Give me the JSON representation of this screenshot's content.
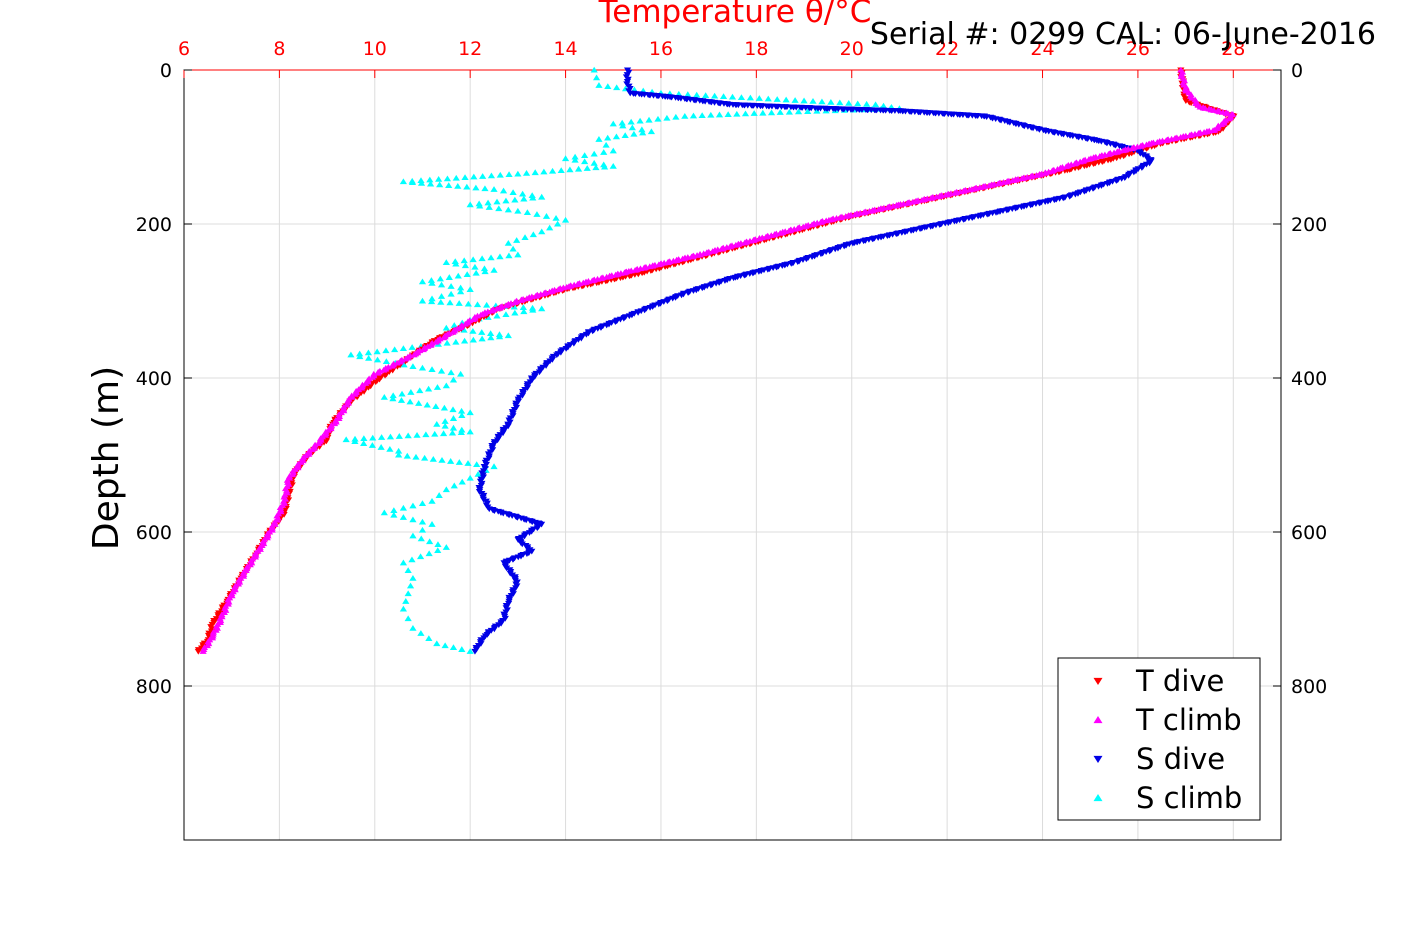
{
  "header": {
    "serial_text": "Serial #: 0299 CAL: 06-June-2016"
  },
  "colors": {
    "axis_top": "#ff0000",
    "t_dive": "#ff0000",
    "t_climb": "#ff00ff",
    "s_dive": "#0000e6",
    "s_climb": "#00ffff",
    "grid": "#dcdcdc"
  },
  "chart_data": {
    "type": "scatter",
    "title": "Temperature θ/°C",
    "xlabel": "Temperature θ/°C",
    "ylabel": "Depth (m)",
    "xlim": [
      6,
      29
    ],
    "ylim": [
      1000,
      0
    ],
    "y_reversed": true,
    "xticks": [
      6,
      8,
      10,
      12,
      14,
      16,
      18,
      20,
      22,
      24,
      26,
      28
    ],
    "yticks": [
      0,
      200,
      400,
      600,
      800
    ],
    "grid": true,
    "legend_position": "bottom-right",
    "series": [
      {
        "name": "T dive",
        "marker": "triangle-down",
        "points": [
          [
            26.9,
            0
          ],
          [
            26.95,
            20
          ],
          [
            27.0,
            40
          ],
          [
            27.5,
            50
          ],
          [
            28.0,
            60
          ],
          [
            27.7,
            80
          ],
          [
            26.5,
            95
          ],
          [
            25.5,
            115
          ],
          [
            24.5,
            130
          ],
          [
            23.0,
            150
          ],
          [
            21.5,
            170
          ],
          [
            20.0,
            190
          ],
          [
            18.5,
            215
          ],
          [
            17.0,
            240
          ],
          [
            15.5,
            265
          ],
          [
            14.0,
            285
          ],
          [
            12.6,
            310
          ],
          [
            12.0,
            330
          ],
          [
            11.3,
            350
          ],
          [
            10.7,
            375
          ],
          [
            10.0,
            405
          ],
          [
            9.5,
            430
          ],
          [
            9.1,
            460
          ],
          [
            9.0,
            480
          ],
          [
            8.6,
            500
          ],
          [
            8.3,
            525
          ],
          [
            8.2,
            550
          ],
          [
            8.1,
            575
          ],
          [
            7.8,
            600
          ],
          [
            7.5,
            630
          ],
          [
            7.2,
            660
          ],
          [
            6.9,
            690
          ],
          [
            6.6,
            720
          ],
          [
            6.5,
            740
          ],
          [
            6.3,
            755
          ]
        ]
      },
      {
        "name": "T climb",
        "marker": "triangle-up",
        "points": [
          [
            26.9,
            0
          ],
          [
            27.0,
            25
          ],
          [
            27.3,
            48
          ],
          [
            28.0,
            58
          ],
          [
            27.6,
            78
          ],
          [
            26.3,
            95
          ],
          [
            25.0,
            115
          ],
          [
            24.0,
            135
          ],
          [
            22.5,
            155
          ],
          [
            21.0,
            175
          ],
          [
            19.5,
            195
          ],
          [
            18.0,
            220
          ],
          [
            16.8,
            240
          ],
          [
            15.3,
            262
          ],
          [
            14.0,
            282
          ],
          [
            13.0,
            300
          ],
          [
            12.2,
            318
          ],
          [
            11.5,
            345
          ],
          [
            10.8,
            370
          ],
          [
            10.0,
            395
          ],
          [
            9.5,
            425
          ],
          [
            9.2,
            455
          ],
          [
            8.8,
            485
          ],
          [
            8.5,
            505
          ],
          [
            8.2,
            530
          ],
          [
            8.1,
            560
          ],
          [
            7.9,
            590
          ],
          [
            7.6,
            620
          ],
          [
            7.3,
            650
          ],
          [
            7.0,
            680
          ],
          [
            6.8,
            710
          ],
          [
            6.6,
            735
          ],
          [
            6.4,
            755
          ]
        ]
      },
      {
        "name": "S dive",
        "marker": "triangle-down",
        "points": [
          [
            15.3,
            0
          ],
          [
            15.3,
            15
          ],
          [
            15.35,
            30
          ],
          [
            16.2,
            35
          ],
          [
            17.5,
            45
          ],
          [
            19.5,
            50
          ],
          [
            21.0,
            53
          ],
          [
            22.8,
            60
          ],
          [
            24.0,
            78
          ],
          [
            25.2,
            92
          ],
          [
            26.0,
            105
          ],
          [
            26.3,
            118
          ],
          [
            25.7,
            140
          ],
          [
            24.5,
            165
          ],
          [
            23.0,
            185
          ],
          [
            21.5,
            205
          ],
          [
            20.0,
            225
          ],
          [
            18.8,
            250
          ],
          [
            17.5,
            270
          ],
          [
            16.5,
            290
          ],
          [
            15.5,
            315
          ],
          [
            14.5,
            340
          ],
          [
            13.8,
            370
          ],
          [
            13.3,
            400
          ],
          [
            13.0,
            430
          ],
          [
            12.8,
            460
          ],
          [
            12.5,
            485
          ],
          [
            12.3,
            515
          ],
          [
            12.2,
            545
          ],
          [
            12.4,
            570
          ],
          [
            13.5,
            590
          ],
          [
            13.0,
            610
          ],
          [
            13.3,
            625
          ],
          [
            12.7,
            640
          ],
          [
            13.0,
            665
          ],
          [
            12.8,
            690
          ],
          [
            12.7,
            715
          ],
          [
            12.3,
            735
          ],
          [
            12.1,
            755
          ]
        ]
      },
      {
        "name": "S climb",
        "marker": "triangle-up",
        "points": [
          [
            14.6,
            0
          ],
          [
            14.7,
            20
          ],
          [
            16.0,
            30
          ],
          [
            17.5,
            35
          ],
          [
            19.0,
            40
          ],
          [
            20.5,
            45
          ],
          [
            21.0,
            50
          ],
          [
            18.5,
            55
          ],
          [
            16.5,
            60
          ],
          [
            15.0,
            70
          ],
          [
            15.8,
            80
          ],
          [
            14.7,
            90
          ],
          [
            15.0,
            105
          ],
          [
            14.0,
            115
          ],
          [
            15.0,
            125
          ],
          [
            13.0,
            135
          ],
          [
            10.6,
            145
          ],
          [
            12.5,
            155
          ],
          [
            13.5,
            165
          ],
          [
            12.0,
            175
          ],
          [
            13.2,
            185
          ],
          [
            14.0,
            195
          ],
          [
            13.5,
            210
          ],
          [
            12.8,
            225
          ],
          [
            13.0,
            240
          ],
          [
            11.5,
            250
          ],
          [
            12.5,
            260
          ],
          [
            11.0,
            275
          ],
          [
            12.0,
            285
          ],
          [
            11.0,
            300
          ],
          [
            13.5,
            310
          ],
          [
            12.0,
            325
          ],
          [
            11.5,
            335
          ],
          [
            12.8,
            345
          ],
          [
            9.5,
            370
          ],
          [
            10.8,
            385
          ],
          [
            11.8,
            395
          ],
          [
            11.5,
            410
          ],
          [
            10.2,
            425
          ],
          [
            12.0,
            445
          ],
          [
            11.3,
            460
          ],
          [
            12.0,
            470
          ],
          [
            9.4,
            480
          ],
          [
            10.5,
            495
          ],
          [
            10.5,
            500
          ],
          [
            12.5,
            515
          ],
          [
            12.0,
            530
          ],
          [
            11.5,
            545
          ],
          [
            11.2,
            560
          ],
          [
            10.2,
            575
          ],
          [
            11.2,
            590
          ],
          [
            10.8,
            605
          ],
          [
            11.5,
            620
          ],
          [
            10.6,
            640
          ],
          [
            10.8,
            660
          ],
          [
            10.7,
            680
          ],
          [
            10.6,
            700
          ],
          [
            10.8,
            725
          ],
          [
            11.3,
            745
          ],
          [
            12.0,
            755
          ]
        ]
      }
    ]
  },
  "right_axis": {
    "ticks": [
      "0",
      "200",
      "400",
      "600",
      "800"
    ]
  }
}
